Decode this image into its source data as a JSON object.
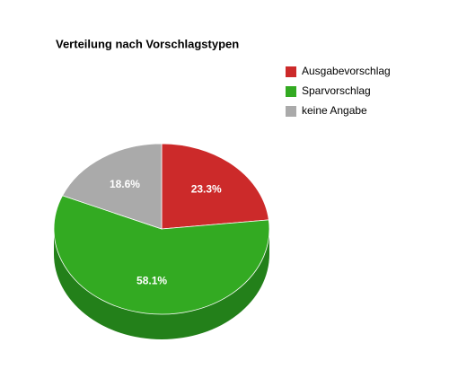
{
  "chart_data": {
    "type": "pie",
    "title": "Verteilung nach Vorschlagstypen",
    "categories": [
      "Ausgabevorschlag",
      "Sparvorschlag",
      "keine Angabe"
    ],
    "values": [
      23.3,
      58.1,
      18.6
    ],
    "value_labels": [
      "23.3%",
      "58.1%",
      "18.6%"
    ],
    "colors": [
      "#cc2a2a",
      "#33aa22",
      "#aaaaaa"
    ],
    "side_colors": [
      "#8f1d1d",
      "#23801a",
      "#7f7f7f"
    ],
    "legend": "right"
  }
}
